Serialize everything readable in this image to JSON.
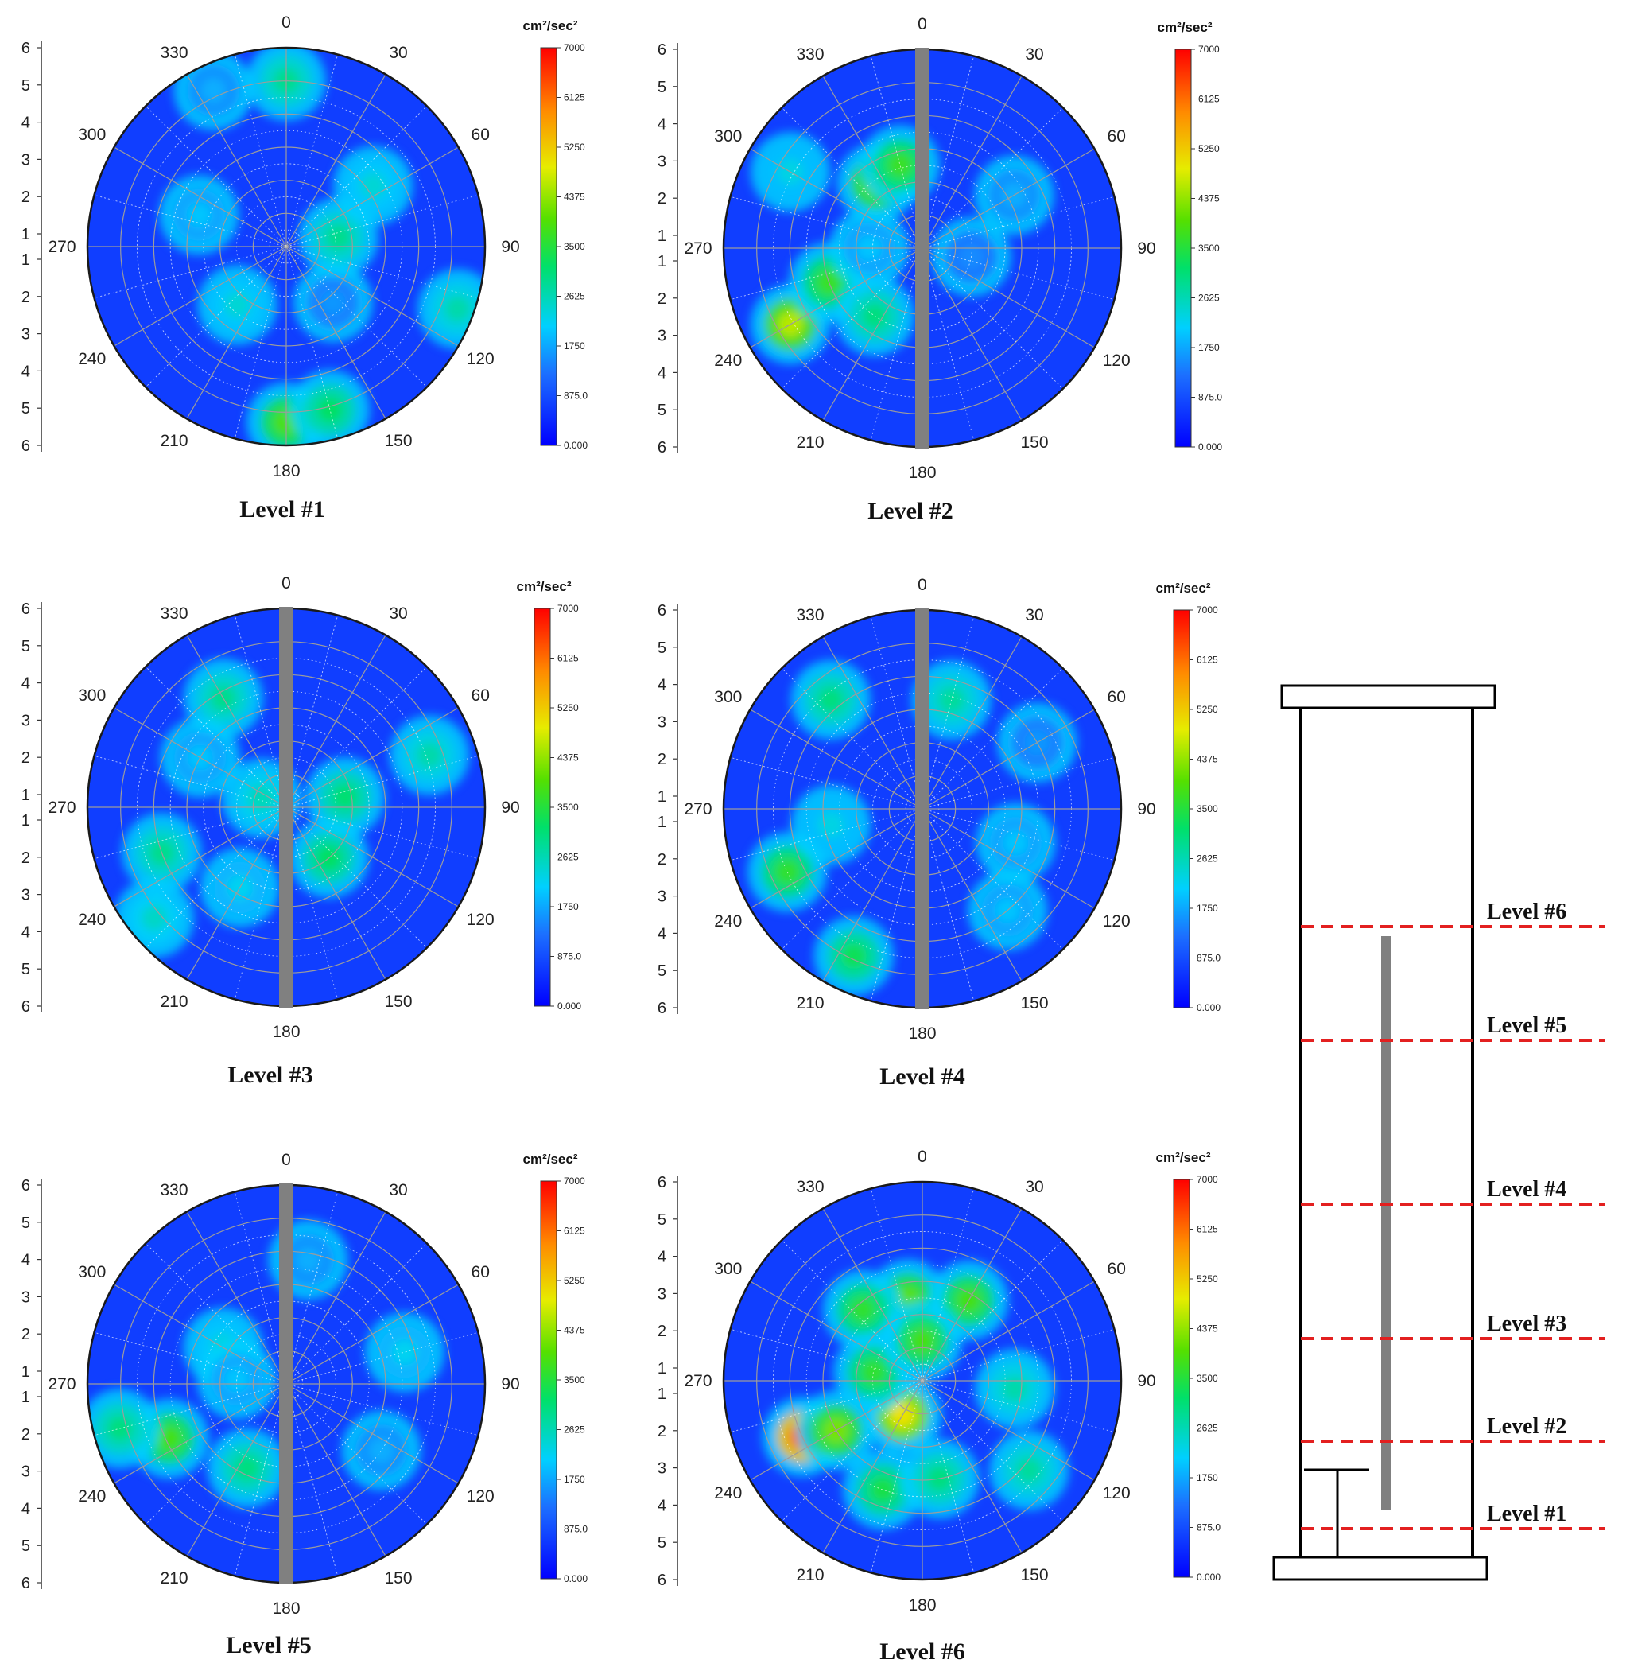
{
  "chart_data": [
    {
      "type": "heatmap",
      "subplot": "polar-contour",
      "title": "Level #1",
      "shaft": false,
      "radial_ticks": [
        "6",
        "5",
        "4",
        "3",
        "2",
        "1",
        "1",
        "2",
        "3",
        "4",
        "5",
        "6"
      ],
      "angle_labels": [
        "0",
        "30",
        "60",
        "90",
        "120",
        "150",
        "180",
        "210",
        "240",
        "270",
        "300",
        "330"
      ],
      "colorbar": {
        "unit": "cm²/sec²",
        "ticks": [
          "7000",
          "6125",
          "5250",
          "4375",
          "3500",
          "2625",
          "1750",
          "875.0",
          "0.000"
        ],
        "range": [
          0,
          7000
        ]
      },
      "hotspots": [
        {
          "angle": 180,
          "r": 5.3,
          "value": 3900
        },
        {
          "angle": 165,
          "r": 5.1,
          "value": 3200
        },
        {
          "angle": 0,
          "r": 5.0,
          "value": 2900
        },
        {
          "angle": 80,
          "r": 1.6,
          "value": 2900
        },
        {
          "angle": 110,
          "r": 5.5,
          "value": 2700
        },
        {
          "angle": 55,
          "r": 3.2,
          "value": 2400
        },
        {
          "angle": 220,
          "r": 2.3,
          "value": 2400
        },
        {
          "angle": 290,
          "r": 2.8,
          "value": 2000
        },
        {
          "angle": 335,
          "r": 5.2,
          "value": 1800
        },
        {
          "angle": 140,
          "r": 2.2,
          "value": 1600
        }
      ]
    },
    {
      "type": "heatmap",
      "subplot": "polar-contour",
      "title": "Level #2",
      "shaft": true,
      "radial_ticks": [
        "6",
        "5",
        "4",
        "3",
        "2",
        "1",
        "1",
        "2",
        "3",
        "4",
        "5",
        "6"
      ],
      "angle_labels": [
        "0",
        "30",
        "60",
        "90",
        "120",
        "150",
        "180",
        "210",
        "240",
        "270",
        "300",
        "330"
      ],
      "colorbar": {
        "unit": "cm²/sec²",
        "ticks": [
          "7000",
          "6125",
          "5250",
          "4375",
          "3500",
          "2625",
          "1750",
          "875.0",
          "0.000"
        ],
        "range": [
          0,
          7000
        ]
      },
      "hotspots": [
        {
          "angle": 325,
          "r": 2.4,
          "value": 4200
        },
        {
          "angle": 345,
          "r": 2.6,
          "value": 3700
        },
        {
          "angle": 240,
          "r": 4.6,
          "value": 4600
        },
        {
          "angle": 250,
          "r": 3.0,
          "value": 3700
        },
        {
          "angle": 215,
          "r": 2.5,
          "value": 3000
        },
        {
          "angle": 300,
          "r": 4.6,
          "value": 2300
        },
        {
          "angle": 270,
          "r": 1.6,
          "value": 2000
        },
        {
          "angle": 60,
          "r": 3.2,
          "value": 1800
        },
        {
          "angle": 100,
          "r": 1.5,
          "value": 1500
        }
      ]
    },
    {
      "type": "heatmap",
      "subplot": "polar-contour",
      "title": "Level #3",
      "shaft": true,
      "radial_ticks": [
        "6",
        "5",
        "4",
        "3",
        "2",
        "1",
        "1",
        "2",
        "3",
        "4",
        "5",
        "6"
      ],
      "angle_labels": [
        "0",
        "30",
        "60",
        "90",
        "120",
        "150",
        "180",
        "210",
        "240",
        "270",
        "300",
        "330"
      ],
      "colorbar": {
        "unit": "cm²/sec²",
        "ticks": [
          "7000",
          "6125",
          "5250",
          "4375",
          "3500",
          "2625",
          "1750",
          "875.0",
          "0.000"
        ],
        "range": [
          0,
          7000
        ]
      },
      "hotspots": [
        {
          "angle": 330,
          "r": 3.8,
          "value": 2900
        },
        {
          "angle": 70,
          "r": 4.6,
          "value": 2700
        },
        {
          "angle": 250,
          "r": 4.0,
          "value": 2900
        },
        {
          "angle": 230,
          "r": 5.2,
          "value": 2500
        },
        {
          "angle": 140,
          "r": 2.0,
          "value": 3200
        },
        {
          "angle": 80,
          "r": 1.8,
          "value": 3100
        },
        {
          "angle": 290,
          "r": 0.8,
          "value": 2600
        },
        {
          "angle": 210,
          "r": 2.8,
          "value": 2200
        },
        {
          "angle": 300,
          "r": 3.0,
          "value": 2000
        }
      ]
    },
    {
      "type": "heatmap",
      "subplot": "polar-contour",
      "title": "Level #4",
      "shaft": true,
      "radial_ticks": [
        "6",
        "5",
        "4",
        "3",
        "2",
        "1",
        "1",
        "2",
        "3",
        "4",
        "5",
        "6"
      ],
      "angle_labels": [
        "0",
        "30",
        "60",
        "90",
        "120",
        "150",
        "180",
        "210",
        "240",
        "270",
        "300",
        "330"
      ],
      "colorbar": {
        "unit": "cm²/sec²",
        "ticks": [
          "7000",
          "6125",
          "5250",
          "4375",
          "3500",
          "2625",
          "1750",
          "875.0",
          "0.000"
        ],
        "range": [
          0,
          7000
        ]
      },
      "hotspots": [
        {
          "angle": 245,
          "r": 4.5,
          "value": 3600
        },
        {
          "angle": 205,
          "r": 4.9,
          "value": 3300
        },
        {
          "angle": 320,
          "r": 4.3,
          "value": 3000
        },
        {
          "angle": 15,
          "r": 3.4,
          "value": 2800
        },
        {
          "angle": 260,
          "r": 2.8,
          "value": 2300
        },
        {
          "angle": 110,
          "r": 3.0,
          "value": 2000
        },
        {
          "angle": 140,
          "r": 4.0,
          "value": 2000
        },
        {
          "angle": 60,
          "r": 4.0,
          "value": 1600
        }
      ]
    },
    {
      "type": "heatmap",
      "subplot": "polar-contour",
      "title": "Level #5",
      "shaft": true,
      "radial_ticks": [
        "6",
        "5",
        "4",
        "3",
        "2",
        "1",
        "1",
        "2",
        "3",
        "4",
        "5",
        "6"
      ],
      "angle_labels": [
        "0",
        "30",
        "60",
        "90",
        "120",
        "150",
        "180",
        "210",
        "240",
        "270",
        "300",
        "330"
      ],
      "colorbar": {
        "unit": "cm²/sec²",
        "ticks": [
          "7000",
          "6125",
          "5250",
          "4375",
          "3500",
          "2625",
          "1750",
          "875.0",
          "0.000"
        ],
        "range": [
          0,
          7000
        ]
      },
      "hotspots": [
        {
          "angle": 245,
          "r": 3.9,
          "value": 3800
        },
        {
          "angle": 255,
          "r": 5.2,
          "value": 3000
        },
        {
          "angle": 205,
          "r": 2.8,
          "value": 3000
        },
        {
          "angle": 300,
          "r": 2.2,
          "value": 2400
        },
        {
          "angle": 75,
          "r": 3.7,
          "value": 2200
        },
        {
          "angle": 10,
          "r": 3.8,
          "value": 1800
        },
        {
          "angle": 125,
          "r": 3.5,
          "value": 1800
        },
        {
          "angle": 275,
          "r": 1.5,
          "value": 2000
        }
      ]
    },
    {
      "type": "heatmap",
      "subplot": "polar-contour",
      "title": "Level #6",
      "shaft": false,
      "radial_ticks": [
        "6",
        "5",
        "4",
        "3",
        "2",
        "1",
        "1",
        "2",
        "3",
        "4",
        "5",
        "6"
      ],
      "angle_labels": [
        "0",
        "30",
        "60",
        "90",
        "120",
        "150",
        "180",
        "210",
        "240",
        "270",
        "300",
        "330"
      ],
      "colorbar": {
        "unit": "cm²/sec²",
        "ticks": [
          "7000",
          "6125",
          "5250",
          "4375",
          "3500",
          "2625",
          "1750",
          "875.0",
          "0.000"
        ],
        "range": [
          0,
          7000
        ]
      },
      "hotspots": [
        {
          "angle": 245,
          "r": 4.0,
          "value": 6300
        },
        {
          "angle": 240,
          "r": 3.0,
          "value": 4200
        },
        {
          "angle": 210,
          "r": 1.2,
          "value": 5000
        },
        {
          "angle": 350,
          "r": 2.5,
          "value": 4000
        },
        {
          "angle": 30,
          "r": 2.8,
          "value": 3800
        },
        {
          "angle": 320,
          "r": 2.8,
          "value": 3600
        },
        {
          "angle": 200,
          "r": 3.5,
          "value": 3400
        },
        {
          "angle": 95,
          "r": 2.8,
          "value": 2700
        },
        {
          "angle": 130,
          "r": 4.2,
          "value": 2800
        },
        {
          "angle": 280,
          "r": 1.5,
          "value": 3600
        },
        {
          "angle": 0,
          "r": 1.2,
          "value": 3800
        },
        {
          "angle": 170,
          "r": 3.0,
          "value": 3000
        }
      ]
    }
  ],
  "schematic": {
    "levels": [
      {
        "label": "Level #6"
      },
      {
        "label": "Level #5"
      },
      {
        "label": "Level #4"
      },
      {
        "label": "Level #3"
      },
      {
        "label": "Level #2"
      },
      {
        "label": "Level #1"
      }
    ],
    "colors": {
      "level_line": "#e32020",
      "shaft": "#808080",
      "outline": "#000000"
    }
  }
}
